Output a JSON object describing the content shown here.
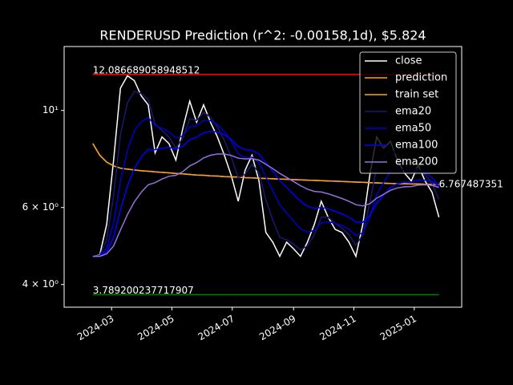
{
  "chart_data": {
    "type": "line",
    "title": "RENDERUSD Prediction (r^2: -0.00158,1d), $5.824",
    "log_y": true,
    "xlim": [
      "2024-01-13",
      "2025-02-18"
    ],
    "ylim": [
      3.55,
      14.0
    ],
    "xticks": [
      {
        "value": "2024-03-01",
        "label": "2024-03"
      },
      {
        "value": "2024-05-01",
        "label": "2024-05"
      },
      {
        "value": "2024-07-01",
        "label": "2024-07"
      },
      {
        "value": "2024-09-01",
        "label": "2024-09"
      },
      {
        "value": "2024-11-01",
        "label": "2024-11"
      },
      {
        "value": "2025-01-01",
        "label": "2025-01"
      }
    ],
    "yticks": [
      {
        "value": 4,
        "label": "4 × 10⁰"
      },
      {
        "value": 6,
        "label": "6 × 10⁰"
      },
      {
        "value": 10,
        "label": "10¹"
      }
    ],
    "x": [
      "2024-02-11",
      "2024-02-18",
      "2024-02-25",
      "2024-03-03",
      "2024-03-10",
      "2024-03-17",
      "2024-03-24",
      "2024-03-31",
      "2024-04-07",
      "2024-04-14",
      "2024-04-21",
      "2024-04-28",
      "2024-05-05",
      "2024-05-12",
      "2024-05-19",
      "2024-05-26",
      "2024-06-02",
      "2024-06-09",
      "2024-06-16",
      "2024-06-23",
      "2024-06-30",
      "2024-07-07",
      "2024-07-14",
      "2024-07-21",
      "2024-07-28",
      "2024-08-04",
      "2024-08-11",
      "2024-08-18",
      "2024-08-25",
      "2024-09-01",
      "2024-09-08",
      "2024-09-15",
      "2024-09-22",
      "2024-09-29",
      "2024-10-06",
      "2024-10-13",
      "2024-10-20",
      "2024-10-27",
      "2024-11-03",
      "2024-11-10",
      "2024-11-17",
      "2024-11-24",
      "2024-12-01",
      "2024-12-08",
      "2024-12-15",
      "2024-12-22",
      "2024-12-29",
      "2025-01-05",
      "2025-01-12",
      "2025-01-19",
      "2025-01-26"
    ],
    "series": [
      {
        "name": "close",
        "color": "#ffffff",
        "values": [
          4.64,
          4.67,
          5.49,
          7.69,
          11.25,
          12.0,
          11.7,
          10.8,
          10.3,
          8.0,
          8.7,
          8.4,
          7.7,
          9.1,
          10.5,
          9.4,
          10.3,
          9.4,
          8.7,
          7.9,
          7.1,
          6.2,
          7.3,
          7.9,
          6.9,
          5.26,
          5.0,
          4.64,
          5.0,
          4.83,
          4.64,
          5.0,
          5.49,
          6.2,
          5.7,
          5.35,
          5.26,
          5.0,
          4.64,
          5.49,
          7.1,
          8.7,
          8.2,
          8.5,
          7.7,
          7.2,
          6.9,
          7.5,
          6.9,
          6.5,
          5.7
        ]
      },
      {
        "name": "prediction",
        "color": "#ffa500",
        "values": [
          8.4,
          7.9,
          7.62,
          7.47,
          7.38,
          7.34,
          7.31,
          7.28,
          7.26,
          7.24,
          7.22,
          7.2,
          7.18,
          7.16,
          7.14,
          7.12,
          7.11,
          7.09,
          7.08,
          7.06,
          7.05,
          7.04,
          7.02,
          7.01,
          7.0,
          6.99,
          6.98,
          6.97,
          6.96,
          6.95,
          6.94,
          6.93,
          6.92,
          6.91,
          6.9,
          6.89,
          6.88,
          6.87,
          6.86,
          6.85,
          6.84,
          6.83,
          6.82,
          6.81,
          6.8,
          6.8,
          6.79,
          6.79,
          6.78,
          6.78,
          6.77
        ]
      },
      {
        "name": "train set",
        "color": "#f5a030",
        "values": [
          8.4,
          7.9,
          7.62,
          7.47,
          7.38,
          7.34,
          7.31,
          7.28,
          7.26,
          7.24,
          7.22,
          7.2,
          7.18,
          7.16,
          7.14,
          7.12,
          7.11,
          7.09,
          7.08,
          7.06,
          7.05,
          7.04,
          7.02,
          7.01,
          7.0,
          6.99,
          6.98,
          6.97,
          6.96,
          6.95,
          6.94,
          6.93,
          6.92,
          6.91,
          6.9,
          6.89,
          6.88,
          6.87,
          6.86,
          6.85,
          6.84,
          6.83,
          6.82,
          6.81,
          6.8,
          6.8,
          6.79,
          6.79,
          6.78,
          6.78,
          6.77
        ]
      },
      {
        "name": "ema20",
        "color": "#191970",
        "values": [
          4.64,
          4.66,
          5.07,
          6.38,
          8.82,
          10.41,
          11.05,
          10.93,
          10.61,
          9.31,
          9.0,
          8.7,
          8.2,
          8.65,
          9.58,
          9.49,
          9.9,
          9.65,
          9.17,
          8.54,
          7.82,
          7.01,
          7.15,
          7.53,
          7.21,
          6.24,
          5.62,
          5.13,
          5.06,
          4.95,
          4.8,
          4.9,
          5.2,
          5.7,
          5.7,
          5.52,
          5.39,
          5.2,
          4.92,
          5.2,
          6.15,
          7.43,
          7.81,
          8.16,
          7.93,
          7.56,
          7.23,
          7.37,
          7.13,
          6.82,
          6.26
        ]
      },
      {
        "name": "ema50",
        "color": "#0000cd",
        "values": [
          4.64,
          4.65,
          4.85,
          5.53,
          6.9,
          8.12,
          8.98,
          9.42,
          9.63,
          9.24,
          9.11,
          8.94,
          8.64,
          8.75,
          9.17,
          9.23,
          9.49,
          9.47,
          9.29,
          8.96,
          8.51,
          7.96,
          7.8,
          7.82,
          7.6,
          7.04,
          6.55,
          6.09,
          5.83,
          5.59,
          5.36,
          5.27,
          5.32,
          5.53,
          5.57,
          5.52,
          5.46,
          5.35,
          5.18,
          5.25,
          5.69,
          6.41,
          6.84,
          7.24,
          7.35,
          7.32,
          7.22,
          7.29,
          7.2,
          7.03,
          6.71
        ]
      },
      {
        "name": "ema100",
        "color": "#0000ff",
        "values": [
          4.64,
          4.64,
          4.75,
          5.13,
          5.93,
          6.72,
          7.37,
          7.82,
          8.15,
          8.13,
          8.2,
          8.23,
          8.16,
          8.28,
          8.57,
          8.68,
          8.89,
          8.96,
          8.93,
          8.8,
          8.58,
          8.27,
          8.14,
          8.11,
          7.95,
          7.6,
          7.26,
          6.92,
          6.67,
          6.43,
          6.2,
          6.04,
          5.97,
          6.0,
          5.96,
          5.88,
          5.8,
          5.7,
          5.56,
          5.55,
          5.75,
          6.13,
          6.4,
          6.67,
          6.8,
          6.85,
          6.86,
          6.94,
          6.93,
          6.87,
          6.72
        ]
      },
      {
        "name": "ema200",
        "color": "#9370db",
        "values": [
          4.64,
          4.64,
          4.7,
          4.9,
          5.33,
          5.78,
          6.18,
          6.5,
          6.76,
          6.84,
          6.97,
          7.07,
          7.11,
          7.25,
          7.47,
          7.6,
          7.79,
          7.9,
          7.95,
          7.95,
          7.89,
          7.78,
          7.75,
          7.76,
          7.7,
          7.53,
          7.36,
          7.18,
          7.03,
          6.88,
          6.73,
          6.61,
          6.53,
          6.51,
          6.45,
          6.37,
          6.29,
          6.2,
          6.09,
          6.05,
          6.12,
          6.3,
          6.43,
          6.57,
          6.65,
          6.69,
          6.7,
          6.75,
          6.76,
          6.74,
          6.67
        ]
      }
    ],
    "hlines": [
      {
        "value": 12.086689058948512,
        "color": "#ff0000"
      },
      {
        "value": 3.789200237717907,
        "color": "#008000"
      }
    ],
    "last_value": 6.767487351,
    "legend": "upper right"
  }
}
